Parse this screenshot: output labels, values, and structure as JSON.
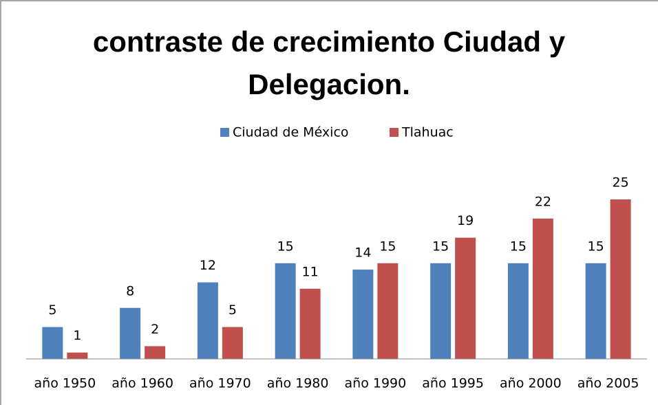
{
  "chart_data": {
    "type": "bar",
    "title": "contraste de crecimiento Ciudad y Delegacion.",
    "categories": [
      "año 1950",
      "año 1960",
      "año 1970",
      "año 1980",
      "año 1990",
      "año 1995",
      "año 2000",
      "año 2005"
    ],
    "series": [
      {
        "name": "Ciudad de México",
        "color": "#4f81bd",
        "values": [
          5,
          8,
          12,
          15,
          14,
          15,
          15,
          15
        ]
      },
      {
        "name": "Tlahuac",
        "color": "#c0504d",
        "values": [
          1,
          2,
          5,
          11,
          15,
          19,
          22,
          25
        ]
      }
    ],
    "legend": "top"
  }
}
